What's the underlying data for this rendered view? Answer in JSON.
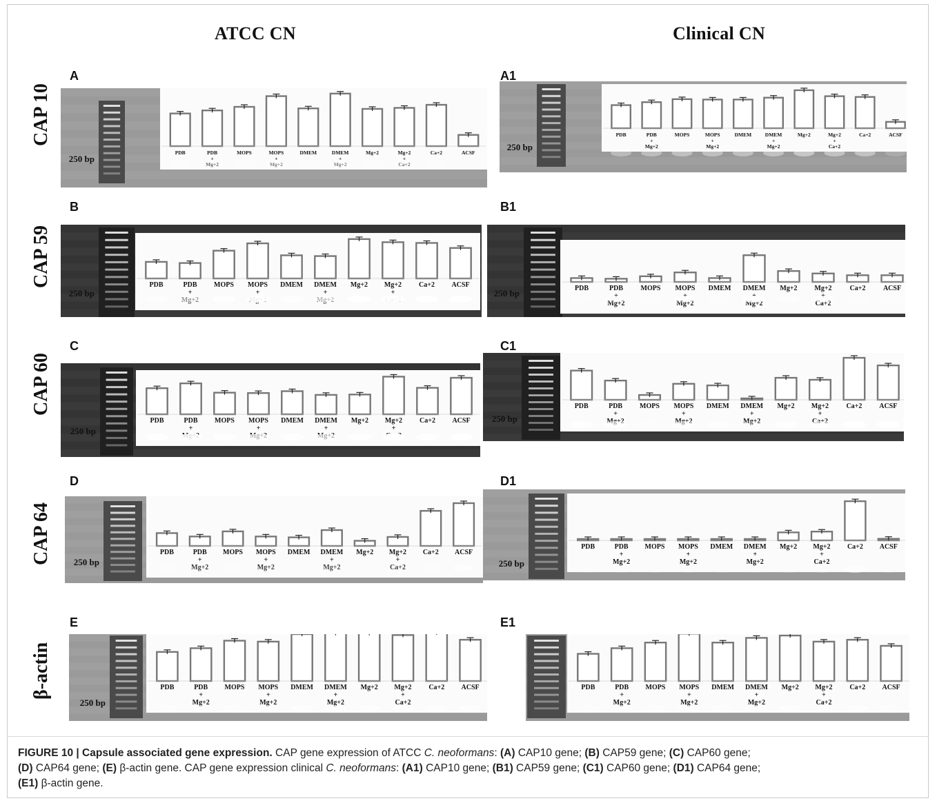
{
  "column_headers": [
    "ATCC CN",
    "Clinical CN"
  ],
  "row_labels": [
    "CAP 10",
    "CAP 59",
    "CAP 60",
    "CAP 64",
    "β-actin"
  ],
  "marker_label": "250 bp",
  "lanes": [
    "PDB",
    "PDB + Mg+2",
    "MOPS",
    "MOPS + Mg+2",
    "DMEM",
    "DMEM + Mg+2",
    "Mg+2",
    "Mg+2 + Ca+2",
    "Ca+2",
    "ACSF"
  ],
  "chart_data": [
    {
      "type": "bar",
      "panel": "A",
      "categories": [
        "PDB",
        "PDB + Mg+2",
        "MOPS",
        "MOPS + Mg+2",
        "DMEM",
        "DMEM + Mg+2",
        "Mg+2",
        "Mg+2 + Ca+2",
        "Ca+2",
        "ACSF"
      ],
      "values": [
        0.64,
        0.7,
        0.77,
        0.98,
        0.74,
        1.03,
        0.73,
        0.75,
        0.81,
        0.22
      ]
    },
    {
      "type": "bar",
      "panel": "A1",
      "categories": [
        "PDB",
        "PDB + Mg+2",
        "MOPS",
        "MOPS + Mg+2",
        "DMEM",
        "DMEM + Mg+2",
        "Mg+2",
        "Mg+2 + Ca+2",
        "Ca+2",
        "ACSF"
      ],
      "values": [
        0.62,
        0.7,
        0.78,
        0.77,
        0.77,
        0.82,
        1.02,
        0.86,
        0.84,
        0.17
      ]
    },
    {
      "type": "bar",
      "panel": "B",
      "categories": [
        "PDB",
        "PDB + Mg+2",
        "MOPS",
        "MOPS + Mg+2",
        "DMEM",
        "DMEM + Mg+2",
        "Mg+2",
        "Mg+2 + Ca+2",
        "Ca+2",
        "ACSF"
      ],
      "values": [
        0.43,
        0.4,
        0.72,
        0.91,
        0.6,
        0.58,
        1.02,
        0.94,
        0.92,
        0.79
      ]
    },
    {
      "type": "bar",
      "panel": "B1",
      "categories": [
        "PDB",
        "PDB + Mg+2",
        "MOPS",
        "MOPS + Mg+2",
        "DMEM",
        "DMEM + Mg+2",
        "Mg+2",
        "Mg+2 + Ca+2",
        "Ca+2",
        "ACSF"
      ],
      "values": [
        0.11,
        0.09,
        0.16,
        0.27,
        0.11,
        0.76,
        0.31,
        0.24,
        0.19,
        0.19
      ]
    },
    {
      "type": "bar",
      "panel": "C",
      "categories": [
        "PDB",
        "PDB + Mg+2",
        "MOPS",
        "MOPS + Mg+2",
        "DMEM",
        "DMEM + Mg+2",
        "Mg+2",
        "Mg+2 + Ca+2",
        "Ca+2",
        "ACSF"
      ],
      "values": [
        0.7,
        0.83,
        0.58,
        0.57,
        0.62,
        0.52,
        0.53,
        1.01,
        0.71,
        0.98
      ]
    },
    {
      "type": "bar",
      "panel": "C1",
      "categories": [
        "PDB",
        "PDB + Mg+2",
        "MOPS",
        "MOPS + Mg+2",
        "DMEM",
        "DMEM + Mg+2",
        "Mg+2",
        "Mg+2 + Ca+2",
        "Ca+2",
        "ACSF"
      ],
      "values": [
        0.73,
        0.48,
        0.12,
        0.4,
        0.36,
        0.02,
        0.55,
        0.5,
        1.05,
        0.86
      ]
    },
    {
      "type": "bar",
      "panel": "D",
      "categories": [
        "PDB",
        "PDB + Mg+2",
        "MOPS",
        "MOPS + Mg+2",
        "DMEM",
        "DMEM + Mg+2",
        "Mg+2",
        "Mg+2 + Ca+2",
        "Ca+2",
        "ACSF"
      ],
      "values": [
        0.3,
        0.22,
        0.34,
        0.22,
        0.2,
        0.37,
        0.12,
        0.21,
        0.82,
        1.0
      ]
    },
    {
      "type": "bar",
      "panel": "D1",
      "categories": [
        "PDB",
        "PDB + Mg+2",
        "MOPS",
        "MOPS + Mg+2",
        "DMEM",
        "DMEM + Mg+2",
        "Mg+2",
        "Mg+2 + Ca+2",
        "Ca+2",
        "ACSF"
      ],
      "values": [
        0.02,
        0.02,
        0.03,
        0.03,
        0.03,
        0.03,
        0.2,
        0.22,
        0.98,
        0.04
      ]
    },
    {
      "type": "bar",
      "panel": "E",
      "categories": [
        "PDB",
        "PDB + Mg+2",
        "MOPS",
        "MOPS + Mg+2",
        "DMEM",
        "DMEM + Mg+2",
        "Mg+2",
        "Mg+2 + Ca+2",
        "Ca+2",
        "ACSF"
      ],
      "values": [
        0.62,
        0.7,
        0.86,
        0.84,
        1.0,
        1.02,
        1.02,
        0.98,
        1.03,
        0.88
      ]
    },
    {
      "type": "bar",
      "panel": "E1",
      "categories": [
        "PDB",
        "PDB + Mg+2",
        "MOPS",
        "MOPS + Mg+2",
        "DMEM",
        "DMEM + Mg+2",
        "Mg+2",
        "Mg+2 + Ca+2",
        "Ca+2",
        "ACSF"
      ],
      "values": [
        0.58,
        0.7,
        0.82,
        1.01,
        0.82,
        0.92,
        0.97,
        0.84,
        0.88,
        0.75
      ]
    }
  ],
  "caption": {
    "figure_label": "FIGURE 10 | Capsule associated gene expression.",
    "text_1": " CAP gene expression of ATCC ",
    "organism": "C. neoformans",
    "text_2": ": ",
    "A": "(A)",
    "A_text": " CAP10 gene; ",
    "B": "(B)",
    "B_text": " CAP59 gene; ",
    "C": "(C)",
    "C_text": " CAP60 gene; ",
    "D": "(D)",
    "D_text": " CAP64 gene; ",
    "E": "(E)",
    "E_text": " β-actin gene. CAP gene expression clinical ",
    "organism2": "C. neoformans",
    "text_3": ": ",
    "A1": "(A1)",
    "A1_text": " CAP10 gene; ",
    "B1": "(B1)",
    "B1_text": " CAP59 gene; ",
    "C1": "(C1)",
    "C1_text": " CAP60 gene; ",
    "D1": "(D1)",
    "D1_text": " CAP64 gene; ",
    "E1": "(E1)",
    "E1_text": " β-actin gene."
  }
}
